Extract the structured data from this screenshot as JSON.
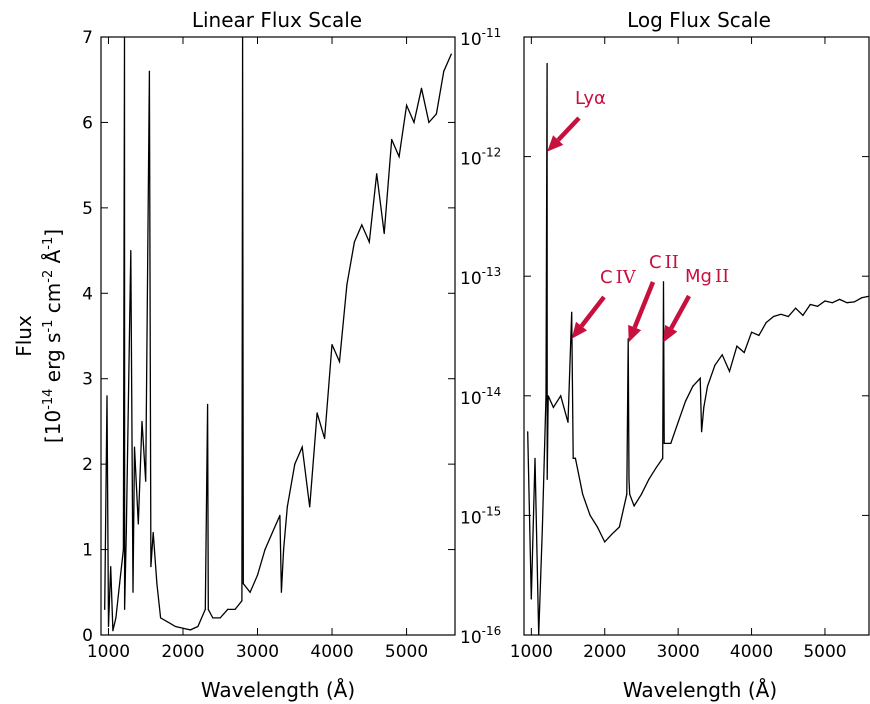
{
  "chart_data": [
    {
      "type": "line",
      "title": "Linear Flux Scale",
      "xlabel": "Wavelength (Å)",
      "ylabel_line1": "Flux",
      "ylabel_line2": "[10-14 erg s-1 cm-2 Å-1]",
      "ylabel_parts": {
        "open": "[",
        "a": "10",
        "a_sup": "-14",
        "b": " erg s",
        "b_sup": "-1",
        "c": " cm",
        "c_sup": "-2",
        "d": " Å",
        "d_sup": "-1",
        "close": "]"
      },
      "xlim": [
        900,
        5650
      ],
      "ylim": [
        0,
        7
      ],
      "x_tick_labels": [
        "1000",
        "2000",
        "3000",
        "4000",
        "5000"
      ],
      "y_tick_labels": [
        "0",
        "1",
        "2",
        "3",
        "4",
        "5",
        "6",
        "7"
      ],
      "grid": false,
      "series": [
        {
          "values_units": "1e-14 erg s-1 cm-2 Å-1",
          "x": [
            950,
            980,
            1000,
            1030,
            1060,
            1100,
            1150,
            1200,
            1215,
            1216,
            1217,
            1240,
            1300,
            1330,
            1350,
            1400,
            1450,
            1500,
            1550,
            1570,
            1600,
            1650,
            1700,
            1800,
            1900,
            2000,
            2100,
            2200,
            2300,
            2330,
            2340,
            2400,
            2500,
            2600,
            2700,
            2790,
            2800,
            2810,
            2900,
            3000,
            3100,
            3200,
            3300,
            3320,
            3350,
            3400,
            3500,
            3600,
            3700,
            3800,
            3900,
            4000,
            4100,
            4200,
            4300,
            4400,
            4500,
            4600,
            4700,
            4800,
            4900,
            5000,
            5100,
            5200,
            5300,
            5400,
            5500,
            5600
          ],
          "values": [
            0.3,
            2.8,
            0.1,
            0.8,
            0.05,
            0.2,
            0.6,
            1.0,
            7.0,
            2.0,
            0.3,
            1.2,
            4.5,
            0.5,
            2.2,
            1.3,
            2.5,
            1.8,
            6.6,
            0.8,
            1.2,
            0.6,
            0.2,
            0.15,
            0.1,
            0.08,
            0.06,
            0.1,
            0.3,
            2.7,
            0.3,
            0.2,
            0.2,
            0.3,
            0.3,
            0.4,
            7.0,
            0.6,
            0.5,
            0.7,
            1.0,
            1.2,
            1.4,
            0.5,
            1.0,
            1.5,
            2.0,
            2.2,
            1.5,
            2.6,
            2.3,
            3.4,
            3.2,
            4.1,
            4.6,
            4.8,
            4.6,
            5.4,
            4.7,
            5.8,
            5.6,
            6.2,
            6.0,
            6.4,
            6.0,
            6.1,
            6.6,
            6.8
          ]
        }
      ]
    },
    {
      "type": "line",
      "title": "Log Flux Scale",
      "xlabel": "Wavelength (Å)",
      "xlim": [
        900,
        5600
      ],
      "ylim": [
        1e-16,
        1e-11
      ],
      "log_y": true,
      "x_tick_labels": [
        "1000",
        "2000",
        "3000",
        "4000",
        "5000"
      ],
      "y_tick_labels": [
        {
          "base": "10",
          "exp": "-16"
        },
        {
          "base": "10",
          "exp": "-15"
        },
        {
          "base": "10",
          "exp": "-14"
        },
        {
          "base": "10",
          "exp": "-13"
        },
        {
          "base": "10",
          "exp": "-12"
        },
        {
          "base": "10",
          "exp": "-11"
        }
      ],
      "grid": false,
      "series": [
        {
          "values_units": "erg s-1 cm-2 Å-1",
          "x": [
            950,
            1000,
            1050,
            1100,
            1150,
            1200,
            1215,
            1216,
            1230,
            1300,
            1400,
            1500,
            1550,
            1570,
            1600,
            1700,
            1800,
            1900,
            2000,
            2100,
            2200,
            2300,
            2320,
            2330,
            2340,
            2400,
            2500,
            2600,
            2700,
            2790,
            2800,
            2810,
            2900,
            3000,
            3100,
            3200,
            3300,
            3320,
            3350,
            3400,
            3500,
            3600,
            3700,
            3800,
            3900,
            4000,
            4100,
            4200,
            4300,
            4400,
            4500,
            4600,
            4700,
            4800,
            4900,
            5000,
            5100,
            5200,
            5300,
            5400,
            5500,
            5600
          ],
          "values": [
            5e-15,
            2e-16,
            3e-15,
            1e-16,
            8e-16,
            1e-14,
            6e-12,
            2e-15,
            1e-14,
            8e-15,
            1e-14,
            6e-15,
            5e-14,
            3e-15,
            3e-15,
            1.5e-15,
            1e-15,
            8e-16,
            6e-16,
            7e-16,
            8e-16,
            1.5e-15,
            3e-14,
            2e-15,
            1.5e-15,
            1.2e-15,
            1.5e-15,
            2e-15,
            2.5e-15,
            3e-15,
            9e-14,
            4e-15,
            4e-15,
            6e-15,
            9e-15,
            1.2e-14,
            1.4e-14,
            5e-15,
            8e-15,
            1.2e-14,
            1.8e-14,
            2.2e-14,
            1.6e-14,
            2.6e-14,
            2.3e-14,
            3.4e-14,
            3.2e-14,
            4.1e-14,
            4.6e-14,
            4.8e-14,
            4.6e-14,
            5.4e-14,
            4.7e-14,
            5.8e-14,
            5.6e-14,
            6.2e-14,
            6e-14,
            6.4e-14,
            6e-14,
            6.1e-14,
            6.6e-14,
            6.8e-14
          ]
        }
      ],
      "annotations": [
        {
          "text": "Lyα",
          "target_x": 1216,
          "target_y": 1.1e-12,
          "color": "#c8103e"
        },
        {
          "text_base": "C",
          "text_roman": "IV",
          "target_x": 1550,
          "target_y": 3e-14,
          "color": "#c8103e"
        },
        {
          "text_base": "C",
          "text_roman": "II",
          "target_x": 2326,
          "target_y": 2.8e-14,
          "color": "#c8103e"
        },
        {
          "text_base": "Mg",
          "text_roman": "II",
          "target_x": 2800,
          "target_y": 2.8e-14,
          "color": "#c8103e"
        }
      ]
    }
  ],
  "colors": {
    "line": "#000000",
    "annotation": "#c8103e"
  }
}
